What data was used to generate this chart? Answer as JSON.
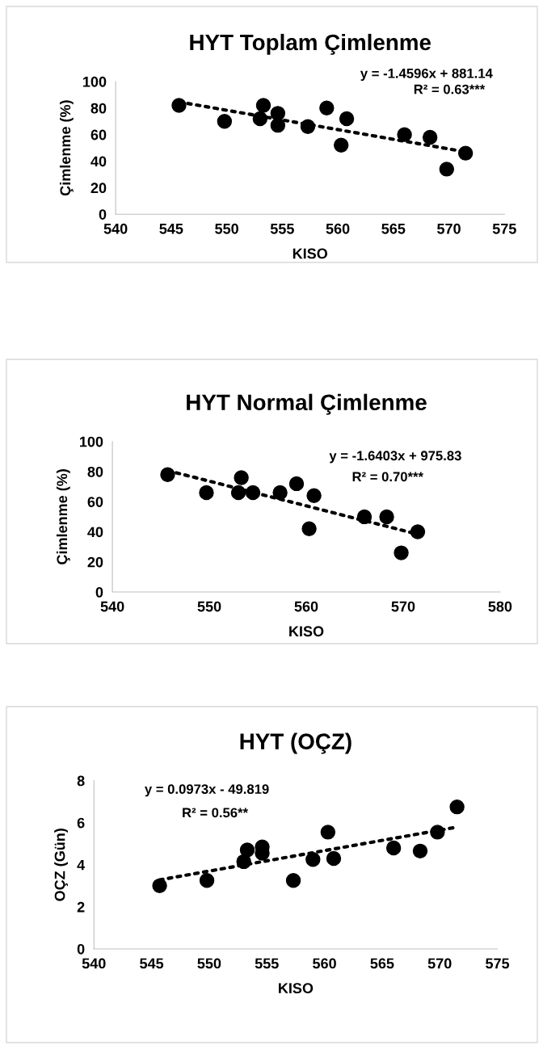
{
  "chart_data": [
    {
      "type": "scatter",
      "title": "HYT Toplam Çimlenme",
      "xlabel": "KISO",
      "ylabel": "Çimlenme (%)",
      "xlim": [
        540,
        575
      ],
      "xticks": [
        540,
        545,
        550,
        555,
        560,
        565,
        570,
        575
      ],
      "ylim": [
        0,
        100
      ],
      "yticks": [
        0,
        20,
        40,
        60,
        80,
        100
      ],
      "grid": false,
      "annotations": [
        "y = -1.4596x + 881.14",
        "R² = 0.63***"
      ],
      "series": [
        {
          "marker": "circle",
          "color": "#000000",
          "x": [
            545.7,
            549.8,
            553.0,
            553.3,
            554.6,
            554.6,
            557.3,
            559.0,
            560.3,
            560.8,
            566.0,
            568.3,
            569.8,
            571.5
          ],
          "values": [
            82,
            70,
            72,
            82,
            76,
            67,
            66,
            80,
            52,
            72,
            60,
            58,
            34,
            46
          ]
        },
        {
          "type": "line",
          "line_style": "dotted",
          "color": "#000000",
          "x": [
            545.7,
            571.5
          ],
          "values": [
            84.6,
            47.0
          ]
        }
      ]
    },
    {
      "type": "scatter",
      "title": "HYT Normal Çimlenme",
      "xlabel": "KISO",
      "ylabel": "Çimlenme (%)",
      "xlim": [
        540,
        580
      ],
      "xticks": [
        540,
        550,
        560,
        570,
        580
      ],
      "ylim": [
        0,
        100
      ],
      "yticks": [
        0,
        20,
        40,
        60,
        80,
        100
      ],
      "grid": false,
      "annotations": [
        "y = -1.6403x + 975.83",
        "R² = 0.70***"
      ],
      "series": [
        {
          "marker": "circle",
          "color": "#000000",
          "x": [
            545.7,
            549.7,
            553.0,
            553.3,
            554.5,
            557.3,
            559.0,
            560.3,
            560.8,
            566.0,
            568.3,
            569.8,
            571.5
          ],
          "values": [
            78,
            66,
            66,
            76,
            66,
            66,
            72,
            42,
            64,
            50,
            50,
            26,
            40
          ]
        },
        {
          "type": "line",
          "line_style": "dotted",
          "color": "#000000",
          "x": [
            545.7,
            571.5
          ],
          "values": [
            80.7,
            38.4
          ]
        }
      ]
    },
    {
      "type": "scatter",
      "title": "HYT (OÇZ)",
      "xlabel": "KISO",
      "ylabel": "OÇZ (Gün)",
      "xlim": [
        540,
        575
      ],
      "xticks": [
        540,
        545,
        550,
        555,
        560,
        565,
        570,
        575
      ],
      "ylim": [
        0,
        8
      ],
      "yticks": [
        0,
        2,
        4,
        6,
        8
      ],
      "grid": false,
      "annotations": [
        "y = 0.0973x - 49.819",
        "R² = 0.56**"
      ],
      "series": [
        {
          "marker": "circle",
          "color": "#000000",
          "x": [
            545.7,
            549.8,
            553.0,
            553.3,
            554.6,
            554.6,
            557.3,
            559.0,
            560.3,
            560.8,
            566.0,
            568.3,
            569.8,
            571.5
          ],
          "values": [
            3.0,
            3.25,
            4.15,
            4.7,
            4.85,
            4.55,
            3.25,
            4.25,
            5.55,
            4.3,
            4.8,
            4.65,
            5.55,
            6.75
          ]
        },
        {
          "type": "line",
          "line_style": "dotted",
          "color": "#000000",
          "x": [
            545.7,
            571.5
          ],
          "values": [
            3.28,
            5.79
          ]
        }
      ]
    }
  ]
}
